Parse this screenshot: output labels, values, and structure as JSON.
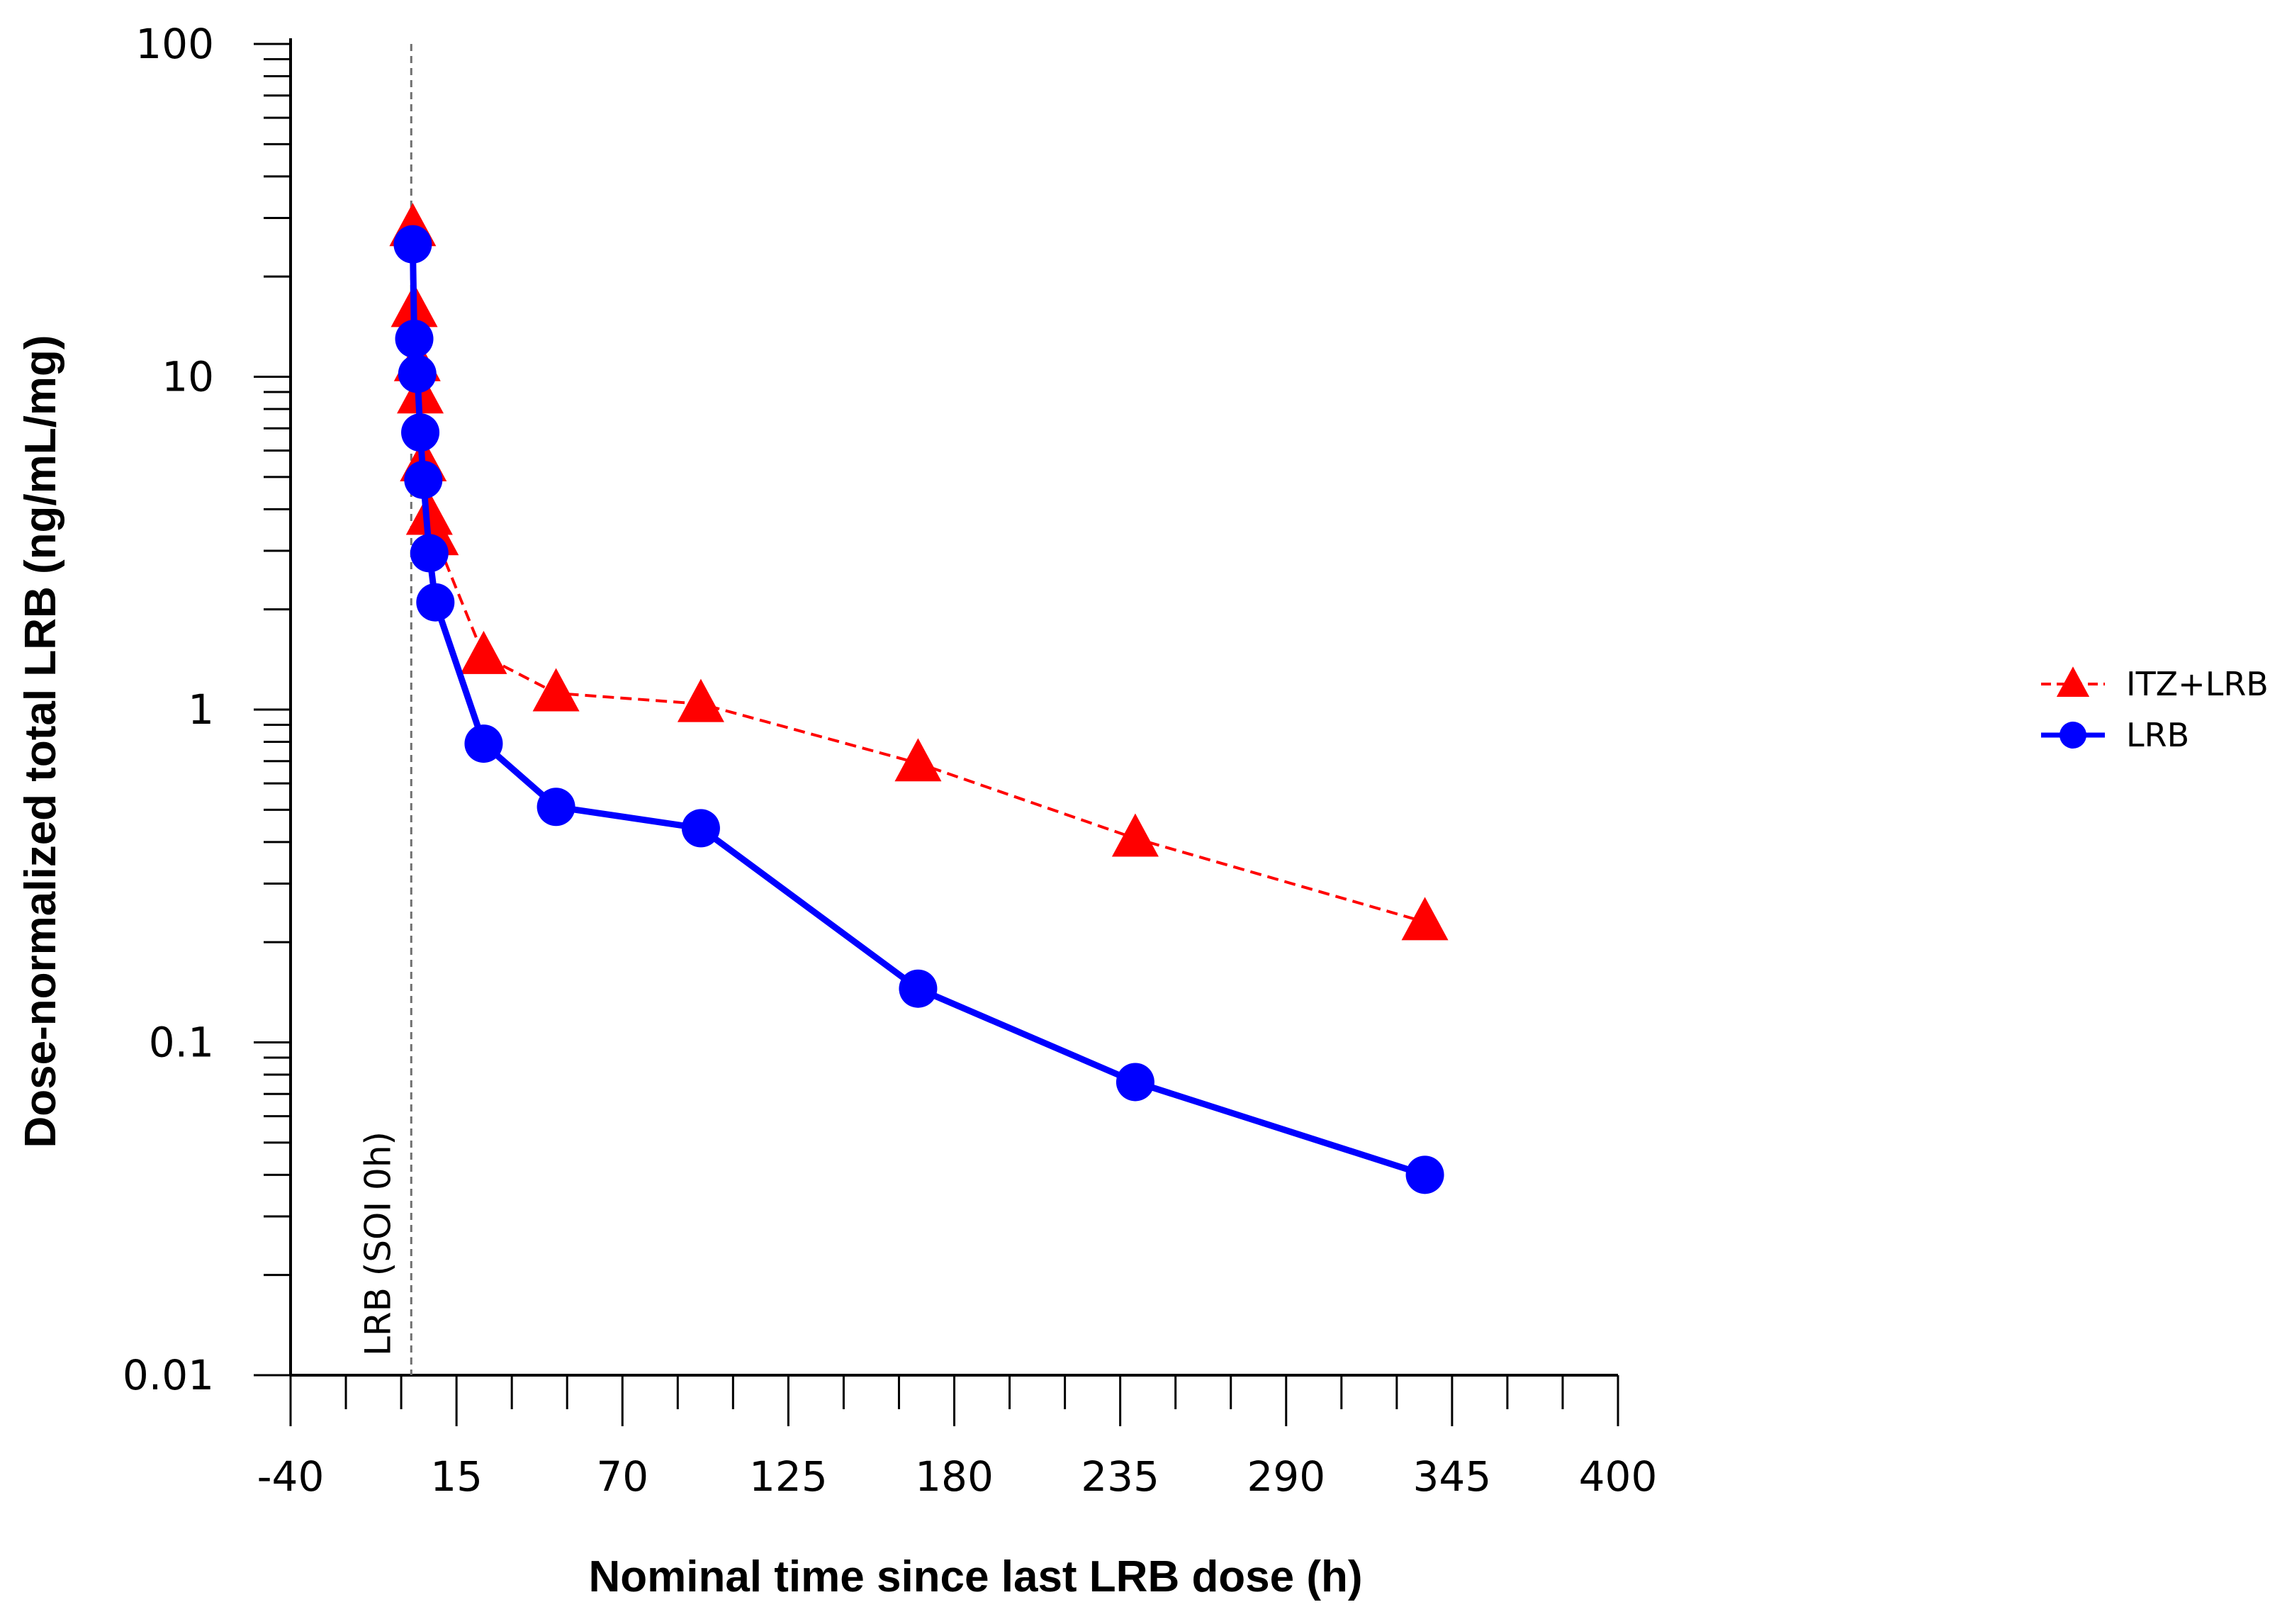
{
  "chart_data": {
    "type": "line",
    "title": "",
    "xlabel": "Nominal time since last LRB dose (h)",
    "ylabel": "Dose-normalized total LRB (ng/mL/mg)",
    "yscale": "log",
    "xlim": [
      -40,
      400
    ],
    "ylim": [
      0.01,
      100
    ],
    "x_ticks": [
      -40,
      15,
      70,
      125,
      180,
      235,
      290,
      345,
      400
    ],
    "x_tick_labels": [
      "-40",
      "15",
      "70",
      "125",
      "180",
      "235",
      "290",
      "345",
      "400"
    ],
    "y_ticks": [
      0.01,
      0.1,
      1,
      10,
      100
    ],
    "y_tick_labels": [
      "0.01",
      "0.1",
      "1",
      "10",
      "100"
    ],
    "reference_line": {
      "x": 0,
      "label": "LRB (SOI 0h)"
    },
    "legend_position": "right",
    "series": [
      {
        "name": "ITZ+LRB",
        "color": "#ff0000",
        "line_style": "dashed",
        "marker": "triangle",
        "x": [
          0.5,
          1,
          2,
          3,
          4,
          6,
          8,
          24,
          48,
          96,
          168,
          240,
          336
        ],
        "y": [
          28,
          16,
          11,
          8.8,
          5.5,
          3.8,
          3.3,
          1.45,
          1.12,
          1.04,
          0.69,
          0.41,
          0.23
        ]
      },
      {
        "name": "LRB",
        "color": "#0000ff",
        "line_style": "solid",
        "marker": "circle",
        "x": [
          0.5,
          1,
          2,
          3,
          4,
          6,
          8,
          24,
          48,
          96,
          168,
          240,
          336
        ],
        "y": [
          25,
          13,
          10.2,
          6.8,
          4.9,
          2.95,
          2.1,
          0.79,
          0.51,
          0.44,
          0.145,
          0.076,
          0.04
        ]
      }
    ]
  }
}
